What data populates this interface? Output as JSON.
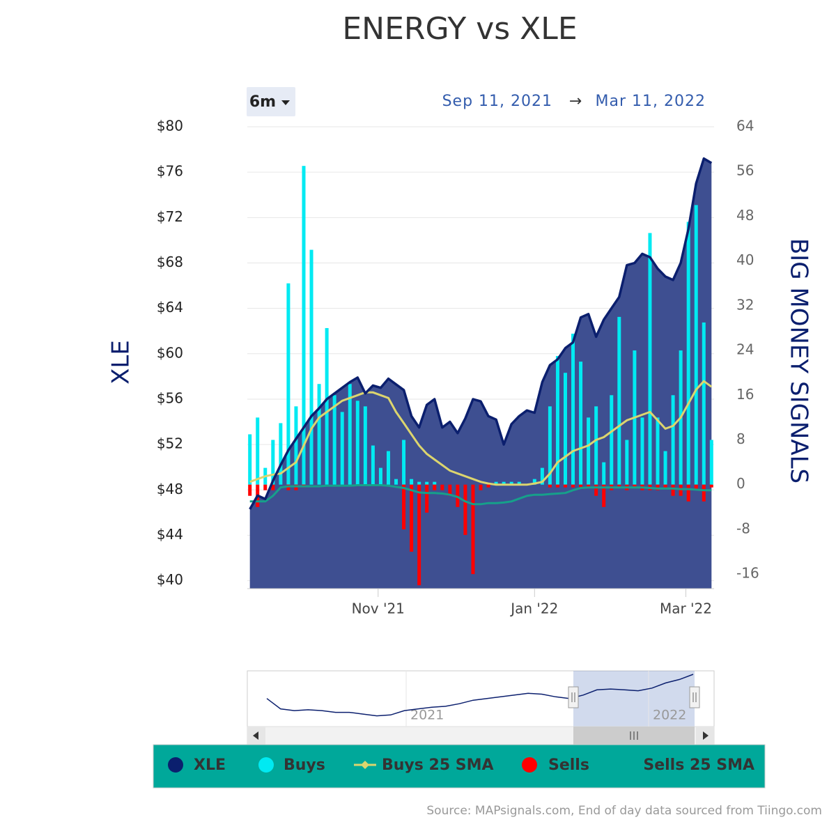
{
  "chart_data": {
    "type": "combo",
    "title": "ENERGY vs XLE",
    "range_button": "6m",
    "range_from": "Sep 11, 2021",
    "range_arrow": "→",
    "range_to": "Mar 11, 2022",
    "y_label": "XLE",
    "y2_label": "BIG MONEY SIGNALS",
    "source": "Source: MAPsignals.com, End of day data sourced from Tiingo.com",
    "xlim": [
      0,
      182
    ],
    "xticks": [
      {
        "value": 51,
        "label": "Nov '21"
      },
      {
        "value": 112,
        "label": "Jan '22"
      },
      {
        "value": 171,
        "label": "Mar '22"
      }
    ],
    "ylim": [
      39.3,
      80
    ],
    "yticks": [
      {
        "value": 80,
        "label": "$80"
      },
      {
        "value": 76,
        "label": "$76"
      },
      {
        "value": 72,
        "label": "$72"
      },
      {
        "value": 68,
        "label": "$68"
      },
      {
        "value": 64,
        "label": "$64"
      },
      {
        "value": 60,
        "label": "$60"
      },
      {
        "value": 56,
        "label": "$56"
      },
      {
        "value": 52,
        "label": "$52"
      },
      {
        "value": 48,
        "label": "$48"
      },
      {
        "value": 44,
        "label": "$44"
      },
      {
        "value": 40,
        "label": "$40"
      }
    ],
    "y2lim": [
      -18.6,
      64
    ],
    "y2ticks": [
      64,
      56,
      48,
      40,
      32,
      24,
      16,
      8,
      0,
      -8,
      -16
    ],
    "grid": true,
    "x": [
      1,
      4,
      7,
      10,
      13,
      16,
      19,
      22,
      25,
      28,
      31,
      34,
      37,
      40,
      43,
      46,
      49,
      52,
      55,
      58,
      61,
      64,
      67,
      70,
      73,
      76,
      79,
      82,
      85,
      88,
      91,
      94,
      97,
      100,
      103,
      106,
      109,
      112,
      115,
      118,
      121,
      124,
      127,
      130,
      133,
      136,
      139,
      142,
      145,
      148,
      151,
      154,
      157,
      160,
      163,
      166,
      169,
      172,
      175,
      178,
      181
    ],
    "series": [
      {
        "name": "XLE",
        "type": "area",
        "axis": "y",
        "color": "#0b1f6e",
        "fill": "#3e4f91",
        "values": [
          46.3,
          47.5,
          47.2,
          48.8,
          50.2,
          51.5,
          52.5,
          53.5,
          54.5,
          55.2,
          56.0,
          56.5,
          57.0,
          57.5,
          57.9,
          56.5,
          57.2,
          57.0,
          57.8,
          57.3,
          56.8,
          54.5,
          53.5,
          55.5,
          56.0,
          53.5,
          54.0,
          53.0,
          54.3,
          56.0,
          55.8,
          54.5,
          54.2,
          52.0,
          53.8,
          54.5,
          55.0,
          54.8,
          57.5,
          59.0,
          59.5,
          60.5,
          61.0,
          63.2,
          63.5,
          61.5,
          63.0,
          64.0,
          65.0,
          67.8,
          68.0,
          68.8,
          68.5,
          67.5,
          66.8,
          66.5,
          68.0,
          71.0,
          75.0,
          77.2,
          76.8
        ]
      },
      {
        "name": "Buys",
        "type": "column",
        "axis": "y2",
        "color": "#00eaf2",
        "values": [
          9,
          12,
          3,
          8,
          11,
          36,
          14,
          57,
          42,
          18,
          28,
          16,
          13,
          18,
          15,
          14,
          7,
          3,
          6,
          1,
          8,
          1,
          0.5,
          0.5,
          0.5,
          0,
          0,
          0,
          0,
          0,
          0,
          0,
          0.5,
          0.5,
          0.5,
          0.5,
          0,
          1,
          3,
          14,
          23,
          20,
          27,
          22,
          12,
          14,
          4,
          16,
          30,
          8,
          24,
          12,
          45,
          12,
          6,
          16,
          24,
          47,
          50,
          29,
          8
        ]
      },
      {
        "name": "Buys 25 SMA",
        "type": "line",
        "axis": "y2",
        "color": "#dcd56e",
        "values": [
          0.5,
          1,
          1.5,
          1.8,
          2,
          3,
          4,
          7,
          10,
          12,
          13,
          14,
          15,
          15.5,
          16,
          16.5,
          16.5,
          16,
          15.5,
          13,
          11,
          9,
          7,
          5.5,
          4.5,
          3.5,
          2.5,
          2,
          1.5,
          1,
          0.5,
          0.2,
          0,
          0,
          0,
          0,
          0,
          0.2,
          0.5,
          2,
          4,
          5,
          6,
          6.5,
          7,
          8,
          8.5,
          9.5,
          10.5,
          11.5,
          12,
          12.5,
          13,
          11.5,
          10,
          10.5,
          12,
          14.5,
          17,
          18.5,
          17.5
        ]
      },
      {
        "name": "Sells",
        "type": "column",
        "axis": "y2",
        "color": "#ff0000",
        "values": [
          -2,
          -4,
          -1,
          -1,
          0,
          -1,
          -1,
          -0.5,
          0,
          0,
          0,
          0,
          0,
          0,
          0,
          0,
          0,
          0,
          0,
          0,
          -8,
          -12,
          -18,
          -5,
          -1,
          -1,
          -2,
          -4,
          -9,
          -16,
          -1,
          -0.5,
          0,
          0,
          0,
          0,
          0,
          0,
          0,
          -0.5,
          -0.5,
          -0.5,
          -0.5,
          -0.5,
          -0.5,
          -2,
          -4,
          -1,
          -0.5,
          -1,
          -0.5,
          -1,
          -1,
          -1,
          -0.5,
          -2,
          -2,
          -3,
          -1,
          -3,
          -0.5
        ]
      },
      {
        "name": "Sells 25 SMA",
        "type": "line",
        "axis": "y2",
        "color": "#16a08a",
        "values": [
          -3,
          -3,
          -3,
          -2,
          -0.5,
          -0.3,
          -0.3,
          -0.3,
          -0.3,
          -0.3,
          -0.2,
          -0.2,
          -0.2,
          -0.2,
          -0.1,
          -0.1,
          -0.1,
          -0.1,
          -0.2,
          -0.4,
          -0.6,
          -1,
          -1.4,
          -1.5,
          -1.5,
          -1.6,
          -1.8,
          -2.2,
          -3,
          -3.5,
          -3.5,
          -3.3,
          -3.3,
          -3.2,
          -3,
          -2.5,
          -2,
          -1.8,
          -1.8,
          -1.7,
          -1.6,
          -1.5,
          -1,
          -0.6,
          -0.5,
          -0.5,
          -0.5,
          -0.5,
          -0.5,
          -0.5,
          -0.5,
          -0.5,
          -0.6,
          -0.7,
          -0.7,
          -0.7,
          -0.8,
          -0.8,
          -0.9,
          -1,
          -1
        ]
      }
    ],
    "navigator": {
      "labels": [
        "2021",
        "2022"
      ],
      "color": "#0b1f6e",
      "values": [
        50,
        44,
        43,
        43.5,
        43,
        42,
        42,
        41,
        40,
        40.5,
        43,
        44,
        45,
        45.5,
        47,
        49,
        50,
        51,
        52,
        53,
        52.5,
        51,
        50,
        52,
        55,
        55.5,
        55,
        54.5,
        56,
        59,
        61,
        64
      ]
    },
    "legend_background": "#00a89a"
  }
}
